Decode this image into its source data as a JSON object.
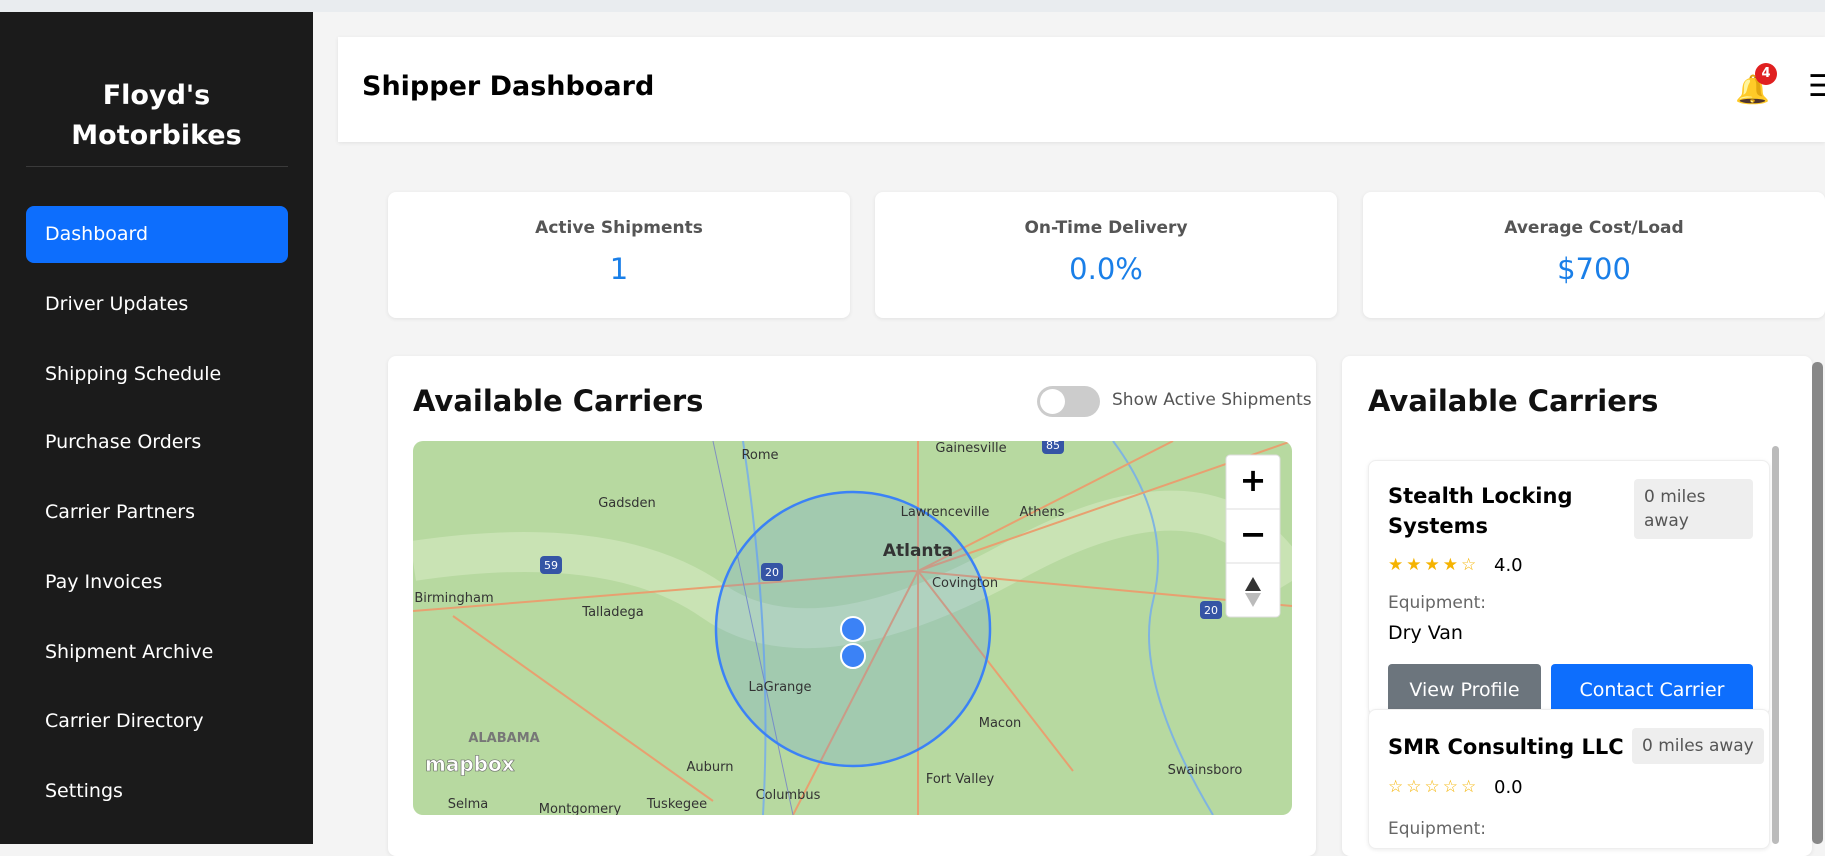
{
  "sidebar": {
    "brand": "Floyd's Motorbikes",
    "nav": [
      "Dashboard",
      "Driver Updates",
      "Shipping Schedule",
      "Purchase Orders",
      "Carrier Partners",
      "Pay Invoices",
      "Shipment Archive",
      "Carrier Directory",
      "Settings"
    ],
    "active": 0
  },
  "header": {
    "title": "Shipper Dashboard",
    "notifications": "4"
  },
  "stats": [
    {
      "label": "Active Shipments",
      "value": "1"
    },
    {
      "label": "On-Time Delivery",
      "value": "0.0%"
    },
    {
      "label": "Average Cost/Load",
      "value": "$700"
    }
  ],
  "map_panel": {
    "title": "Available Carriers",
    "toggle": "Show Active Shipments",
    "zoom_in": "+",
    "zoom_out": "−",
    "attribution": "mapbox",
    "labels": [
      "Rome",
      "Gadsden",
      "Gainesville",
      "Lawrenceville",
      "Athens",
      "Atlanta",
      "Birmingham",
      "Talladega",
      "Covington",
      "LaGrange",
      "ALABAMA",
      "Macon",
      "Auburn",
      "Columbus",
      "Fort Valley",
      "Swainsboro",
      "Selma",
      "Montgomery",
      "Tuskegee"
    ],
    "shields": [
      "59",
      "20",
      "85",
      "20"
    ]
  },
  "carriers_panel": {
    "title": "Available Carriers",
    "equipment_label": "Equipment:",
    "view_button": "View Profile",
    "contact_button": "Contact Carrier",
    "carriers": [
      {
        "name": "Stealth Locking Systems",
        "distance": "0 miles away",
        "rating": "4.0",
        "equipment": "Dry Van"
      },
      {
        "name": "SMR Consulting LLC",
        "distance": "0 miles away",
        "rating": "0.0"
      }
    ]
  }
}
